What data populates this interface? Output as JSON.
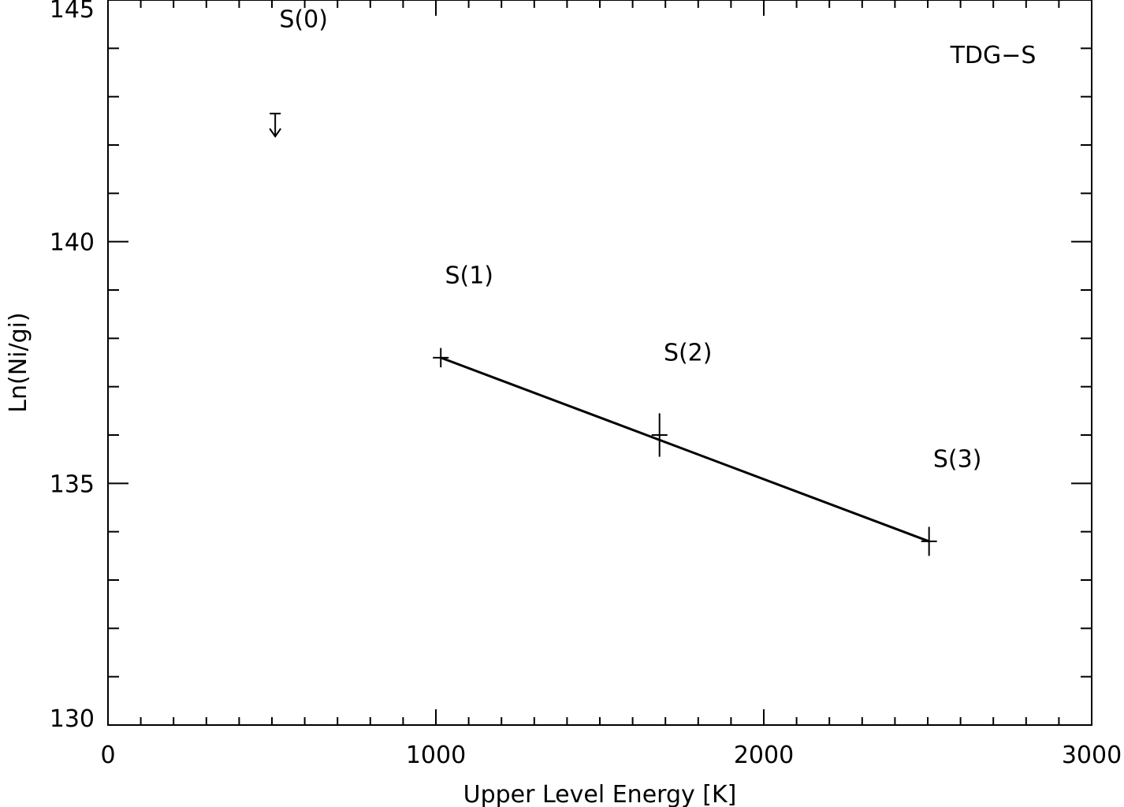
{
  "chart_data": {
    "type": "line",
    "title": "",
    "annotation_label": "TDG−S",
    "xlabel": "Upper Level Energy [K]",
    "ylabel": "Ln(Ni/gi)",
    "xlim": [
      0,
      3000
    ],
    "ylim": [
      130,
      145
    ],
    "x_ticks": [
      0,
      1000,
      2000,
      3000
    ],
    "y_ticks": [
      130,
      135,
      140,
      145
    ],
    "x_minor_step": 100,
    "y_minor_step": 1,
    "grid": false,
    "legend": "none",
    "series": [
      {
        "points": [
          {
            "label": "S(1)",
            "x": 1015,
            "y": 137.6,
            "yerr": 0.2
          },
          {
            "label": "S(2)",
            "x": 1682,
            "y": 136.0,
            "yerr": 0.45
          },
          {
            "label": "S(3)",
            "x": 2504,
            "y": 133.8,
            "yerr": 0.3
          }
        ],
        "fit_line": {
          "x": [
            1015,
            2504
          ],
          "y": [
            137.6,
            133.8
          ]
        }
      }
    ],
    "upper_limits": [
      {
        "label": "S(0)",
        "x": 510,
        "y": 142.65
      }
    ],
    "point_labels": [
      {
        "text": "S(0)",
        "x": 510,
        "y": 144.6
      },
      {
        "text": "S(1)",
        "x": 1015,
        "y": 139.3
      },
      {
        "text": "S(2)",
        "x": 1682,
        "y": 137.7
      },
      {
        "text": "S(3)",
        "x": 2504,
        "y": 135.5
      }
    ]
  }
}
